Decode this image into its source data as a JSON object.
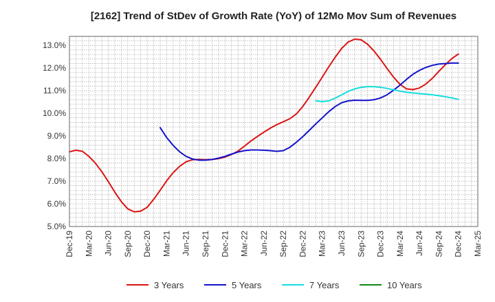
{
  "chart_data": {
    "type": "line",
    "title": "[2162]  Trend of StDev of Growth Rate (YoY) of 12Mo Mov Sum of Revenues",
    "xlabel": "",
    "ylabel": "",
    "ylim": [
      5.0,
      13.4
    ],
    "y_ticks": [
      5.0,
      6.0,
      7.0,
      8.0,
      9.0,
      10.0,
      11.0,
      12.0,
      13.0
    ],
    "y_tick_labels": [
      "5.0%",
      "6.0%",
      "7.0%",
      "8.0%",
      "9.0%",
      "10.0%",
      "11.0%",
      "12.0%",
      "13.0%"
    ],
    "x_tick_labels": [
      "Dec-19",
      "Mar-20",
      "Jun-20",
      "Sep-20",
      "Dec-20",
      "Mar-21",
      "Jun-21",
      "Sep-21",
      "Dec-21",
      "Mar-22",
      "Jun-22",
      "Sep-22",
      "Dec-22",
      "Mar-23",
      "Jun-23",
      "Sep-23",
      "Dec-23",
      "Mar-24",
      "Jun-24",
      "Sep-24",
      "Dec-24",
      "Mar-25"
    ],
    "x_start": "Dec-19",
    "x_unit": "months since Dec-19",
    "grid": true,
    "legend_position": "bottom",
    "series": [
      {
        "name": "3 Years",
        "color": "#dd1111",
        "x": [
          0,
          1,
          2,
          3,
          4,
          5,
          6,
          7,
          8,
          9,
          10,
          11,
          12,
          13,
          14,
          15,
          16,
          17,
          18,
          19,
          20,
          21,
          22,
          23,
          24,
          25,
          26,
          27,
          28,
          29,
          30,
          31,
          32,
          33,
          34,
          35,
          36,
          37,
          38,
          39,
          40,
          41,
          42,
          43,
          44,
          45,
          46,
          47,
          48,
          49,
          50,
          51,
          52,
          53,
          54,
          55,
          56,
          57,
          58,
          59,
          60
        ],
        "values": [
          8.3,
          8.37,
          8.32,
          8.1,
          7.8,
          7.42,
          6.98,
          6.52,
          6.1,
          5.78,
          5.65,
          5.68,
          5.85,
          6.2,
          6.6,
          7.02,
          7.38,
          7.66,
          7.86,
          7.95,
          7.96,
          7.95,
          7.96,
          8.0,
          8.07,
          8.18,
          8.33,
          8.55,
          8.78,
          8.98,
          9.17,
          9.35,
          9.5,
          9.63,
          9.76,
          9.97,
          10.3,
          10.72,
          11.15,
          11.6,
          12.05,
          12.48,
          12.87,
          13.15,
          13.28,
          13.25,
          13.05,
          12.75,
          12.38,
          11.98,
          11.6,
          11.28,
          11.08,
          11.05,
          11.12,
          11.3,
          11.55,
          11.86,
          12.15,
          12.42,
          12.62
        ]
      },
      {
        "name": "5 Years",
        "color": "#1111cc",
        "x": [
          14,
          15,
          16,
          17,
          18,
          19,
          20,
          21,
          22,
          23,
          24,
          25,
          26,
          27,
          28,
          29,
          30,
          31,
          32,
          33,
          34,
          35,
          36,
          37,
          38,
          39,
          40,
          41,
          42,
          43,
          44,
          45,
          46,
          47,
          48,
          49,
          50,
          51,
          52,
          53,
          54,
          55,
          56,
          57,
          58,
          59,
          60
        ],
        "values": [
          9.37,
          8.93,
          8.58,
          8.3,
          8.1,
          7.98,
          7.93,
          7.93,
          7.96,
          8.02,
          8.1,
          8.2,
          8.29,
          8.35,
          8.38,
          8.38,
          8.37,
          8.35,
          8.32,
          8.35,
          8.5,
          8.72,
          8.97,
          9.25,
          9.53,
          9.8,
          10.07,
          10.3,
          10.47,
          10.55,
          10.58,
          10.57,
          10.57,
          10.6,
          10.68,
          10.82,
          11.02,
          11.25,
          11.5,
          11.73,
          11.9,
          12.03,
          12.12,
          12.18,
          12.2,
          12.22,
          12.22
        ]
      },
      {
        "name": "7 Years",
        "color": "#11dddd",
        "x": [
          38,
          39,
          40,
          41,
          42,
          43,
          44,
          45,
          46,
          47,
          48,
          49,
          50,
          51,
          52,
          53,
          54,
          55,
          56,
          57,
          58,
          59,
          60
        ],
        "values": [
          10.55,
          10.52,
          10.55,
          10.67,
          10.82,
          10.97,
          11.08,
          11.15,
          11.18,
          11.18,
          11.15,
          11.1,
          11.04,
          10.98,
          10.93,
          10.9,
          10.87,
          10.85,
          10.82,
          10.78,
          10.73,
          10.68,
          10.62
        ]
      },
      {
        "name": "10 Years",
        "color": "#118811",
        "x": [],
        "values": []
      }
    ]
  }
}
